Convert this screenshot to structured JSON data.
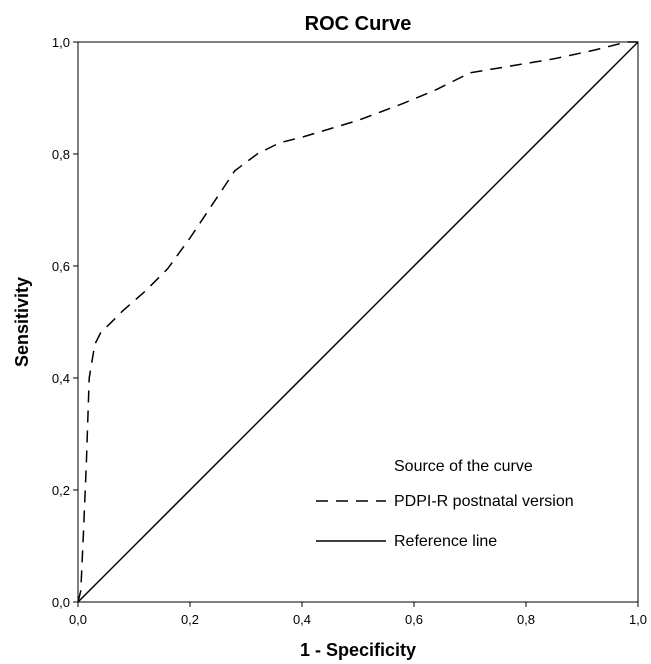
{
  "chart_data": {
    "type": "line",
    "title": "ROC Curve",
    "xlabel": "1 - Specificity",
    "ylabel": "Sensitivity",
    "xlim": [
      0,
      1
    ],
    "ylim": [
      0,
      1
    ],
    "xticks": [
      "0,0",
      "0,2",
      "0,4",
      "0,6",
      "0,8",
      "1,0"
    ],
    "yticks": [
      "0,0",
      "0,2",
      "0,4",
      "0,6",
      "0,8",
      "1,0"
    ],
    "grid": false,
    "legend": {
      "title": "Source of the curve",
      "placement": "bottom-right"
    },
    "series": [
      {
        "name": "PDPI-R postnatal version",
        "style": "dashed",
        "color": "#000000",
        "x": [
          0.0,
          0.005,
          0.01,
          0.015,
          0.02,
          0.03,
          0.04,
          0.08,
          0.12,
          0.16,
          0.2,
          0.24,
          0.28,
          0.32,
          0.36,
          0.4,
          0.5,
          0.58,
          0.64,
          0.7,
          0.76,
          0.85,
          0.92,
          0.98,
          1.0
        ],
        "y": [
          0.0,
          0.02,
          0.13,
          0.25,
          0.4,
          0.46,
          0.48,
          0.52,
          0.555,
          0.595,
          0.65,
          0.71,
          0.77,
          0.8,
          0.82,
          0.83,
          0.86,
          0.89,
          0.915,
          0.945,
          0.955,
          0.97,
          0.985,
          1.0,
          1.0
        ]
      },
      {
        "name": "Reference line",
        "style": "solid",
        "color": "#000000",
        "x": [
          0.0,
          1.0
        ],
        "y": [
          0.0,
          1.0
        ]
      }
    ]
  }
}
